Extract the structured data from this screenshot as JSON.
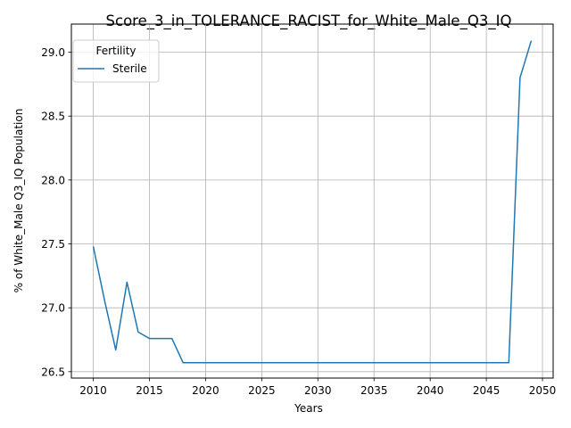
{
  "chart_data": {
    "type": "line",
    "title": "Score_3_in_TOLERANCE_RACIST_for_White_Male_Q3_IQ",
    "xlabel": "Years",
    "ylabel": "% of White_Male Q3_IQ Population",
    "xlim": [
      2008.05,
      2050.95
    ],
    "ylim": [
      26.45,
      29.22
    ],
    "x_ticks": [
      2010,
      2015,
      2020,
      2025,
      2030,
      2035,
      2040,
      2045,
      2050
    ],
    "y_ticks": [
      26.5,
      27.0,
      27.5,
      28.0,
      28.5,
      29.0
    ],
    "x_tick_labels": [
      "2010",
      "2015",
      "2020",
      "2025",
      "2030",
      "2035",
      "2040",
      "2045",
      "2050"
    ],
    "y_tick_labels": [
      "26.5",
      "27.0",
      "27.5",
      "28.0",
      "28.5",
      "29.0"
    ],
    "grid": true,
    "legend": {
      "title": "Fertility",
      "placement": "top-left"
    },
    "series": [
      {
        "name": "Sterile",
        "color": "#1f77b4",
        "x": [
          2010,
          2011,
          2012,
          2013,
          2014,
          2015,
          2016,
          2017,
          2018,
          2019,
          2020,
          2021,
          2022,
          2023,
          2024,
          2025,
          2026,
          2027,
          2028,
          2029,
          2030,
          2031,
          2032,
          2033,
          2034,
          2035,
          2036,
          2037,
          2038,
          2039,
          2040,
          2041,
          2042,
          2043,
          2044,
          2045,
          2046,
          2047,
          2048,
          2049
        ],
        "y": [
          27.48,
          27.06,
          26.67,
          27.2,
          26.81,
          26.76,
          26.76,
          26.76,
          26.57,
          26.57,
          26.57,
          26.57,
          26.57,
          26.57,
          26.57,
          26.57,
          26.57,
          26.57,
          26.57,
          26.57,
          26.57,
          26.57,
          26.57,
          26.57,
          26.57,
          26.57,
          26.57,
          26.57,
          26.57,
          26.57,
          26.57,
          26.57,
          26.57,
          26.57,
          26.57,
          26.57,
          26.57,
          26.57,
          28.8,
          29.09
        ]
      }
    ]
  }
}
